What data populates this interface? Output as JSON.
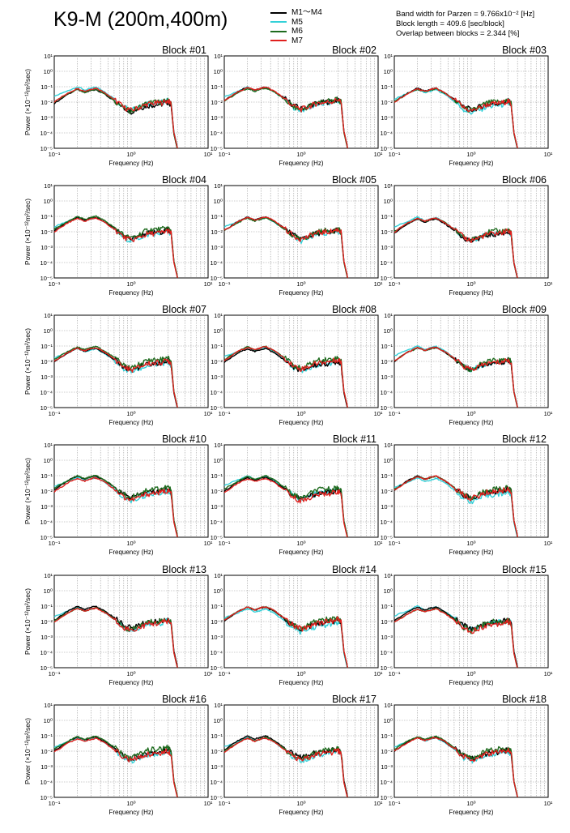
{
  "title": "K9-M (200m,400m)",
  "legend": [
    {
      "label": "M1～M4",
      "color": "#000000"
    },
    {
      "label": "M5",
      "color": "#33d0d8"
    },
    {
      "label": "M6",
      "color": "#1e6b1e"
    },
    {
      "label": "M7",
      "color": "#e0201e"
    }
  ],
  "params": [
    "Band width for Parzen = 9.766x10⁻² [Hz]",
    "Block length = 409.6 [sec/block]",
    "Overlap between blocks = 2.344 [%]"
  ],
  "axis": {
    "xlabel": "Frequency (Hz)",
    "ylabel": "Power (×10⁻¹²m²/sec)",
    "xticks": [
      "10⁻¹",
      "10⁰",
      "10¹"
    ],
    "yticks": [
      "10¹",
      "10⁰",
      "10⁻¹",
      "10⁻²",
      "10⁻³",
      "10⁻⁴",
      "10⁻⁵"
    ]
  },
  "chart_data": {
    "type": "line",
    "scale": "log-log",
    "grid": true,
    "xlim": [
      0.1,
      10
    ],
    "ylim": [
      1e-05,
      10
    ],
    "panel_titles": [
      "Block #01",
      "Block #02",
      "Block #03",
      "Block #04",
      "Block #05",
      "Block #06",
      "Block #07",
      "Block #08",
      "Block #09",
      "Block #10",
      "Block #11",
      "Block #12",
      "Block #13",
      "Block #14",
      "Block #15",
      "Block #16",
      "Block #17",
      "Block #18"
    ],
    "x": [
      0.1,
      0.15,
      0.2,
      0.25,
      0.3,
      0.35,
      0.45,
      0.6,
      0.8,
      1.0,
      1.3,
      1.6,
      2.0,
      2.5,
      3.0,
      3.3,
      3.6,
      4.0
    ],
    "series": [
      {
        "name": "M1～M4",
        "values": [
          0.01,
          0.04,
          0.08,
          0.05,
          0.07,
          0.08,
          0.04,
          0.015,
          0.005,
          0.003,
          0.005,
          0.007,
          0.008,
          0.009,
          0.012,
          0.008,
          0.0001,
          1e-05
        ]
      },
      {
        "name": "M5",
        "values": [
          0.02,
          0.045,
          0.085,
          0.05,
          0.065,
          0.08,
          0.04,
          0.014,
          0.004,
          0.0025,
          0.004,
          0.006,
          0.007,
          0.008,
          0.011,
          0.007,
          0.0001,
          1e-05
        ]
      },
      {
        "name": "M6",
        "values": [
          0.012,
          0.04,
          0.08,
          0.052,
          0.07,
          0.085,
          0.045,
          0.016,
          0.005,
          0.003,
          0.006,
          0.01,
          0.012,
          0.012,
          0.015,
          0.01,
          0.0001,
          1e-05
        ]
      },
      {
        "name": "M7",
        "values": [
          0.01,
          0.038,
          0.075,
          0.05,
          0.068,
          0.08,
          0.042,
          0.015,
          0.0045,
          0.0028,
          0.0045,
          0.007,
          0.008,
          0.009,
          0.012,
          0.008,
          0.0001,
          1e-05
        ]
      }
    ]
  }
}
